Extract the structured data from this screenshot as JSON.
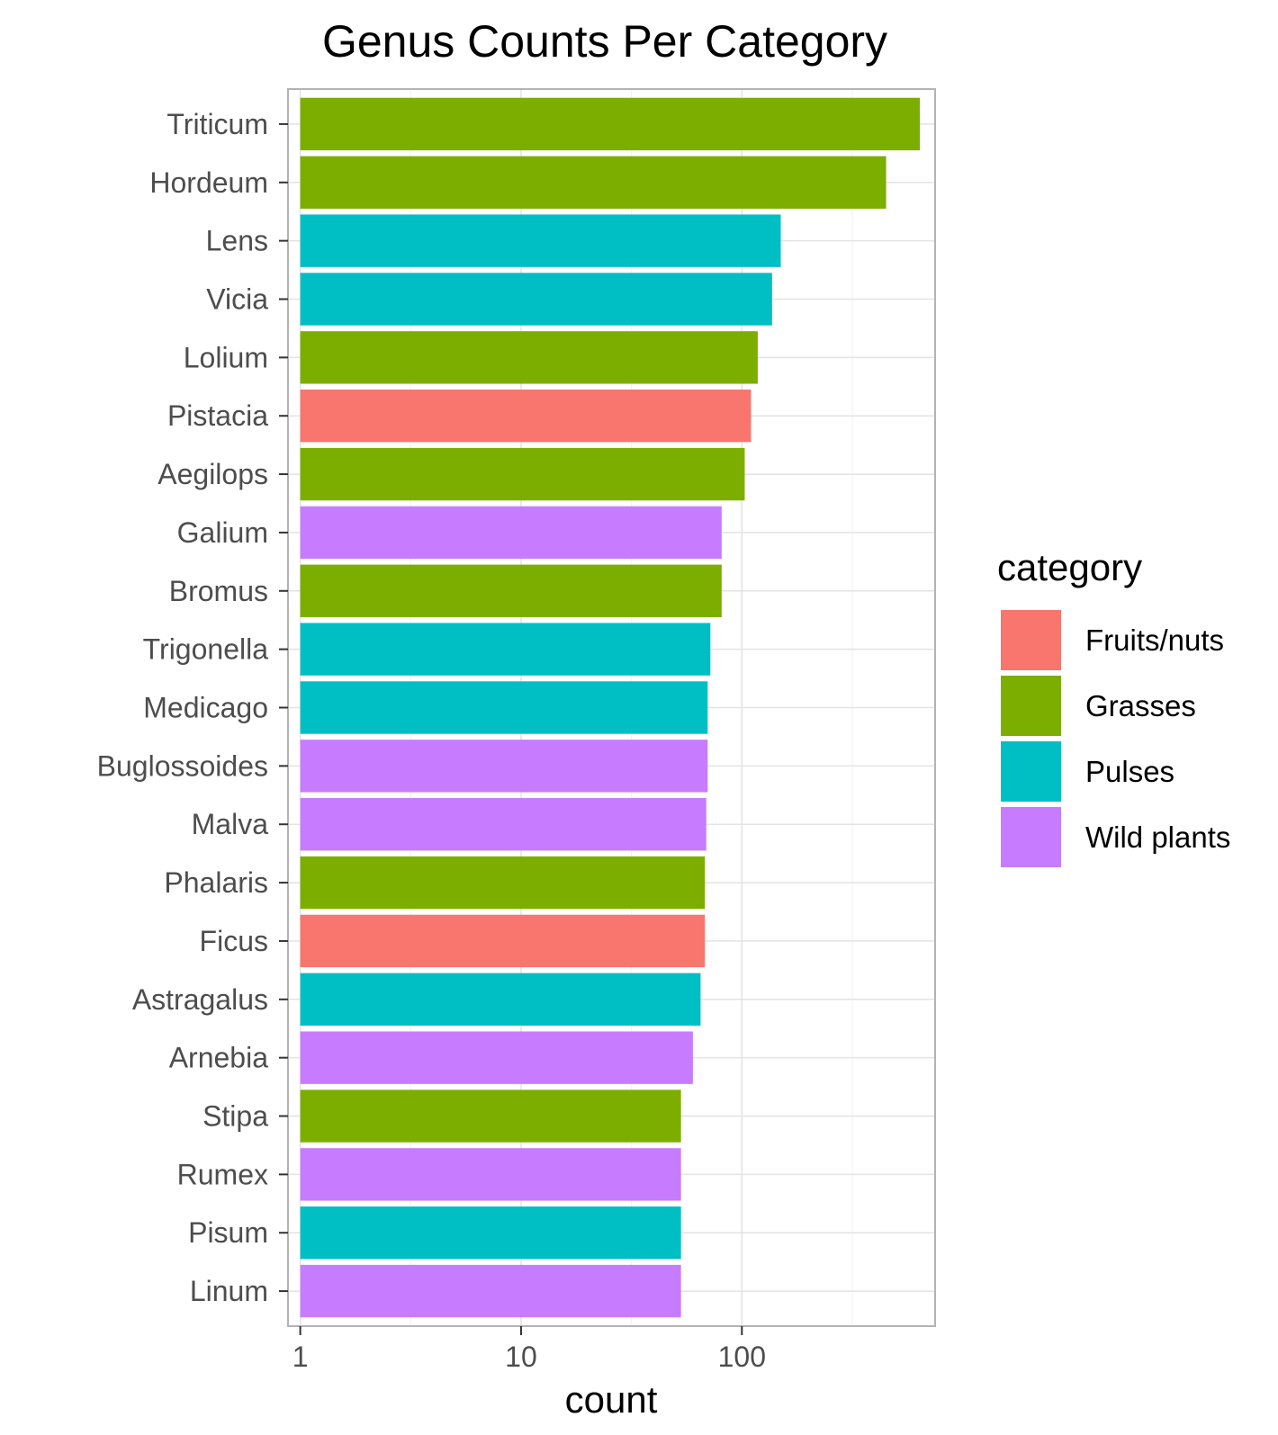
{
  "chart_data": {
    "type": "bar",
    "orientation": "horizontal",
    "title": "Genus Counts Per Category",
    "xlabel": "count",
    "ylabel": "",
    "x_scale": "log10",
    "xlim": [
      0.88,
      750
    ],
    "x_ticks": [
      1,
      10,
      100
    ],
    "x_tick_labels": [
      "1",
      "10",
      "100"
    ],
    "grid": true,
    "legend": {
      "title": "category",
      "position": "right",
      "entries": [
        {
          "label": "Fruits/nuts",
          "color": "#F8766D"
        },
        {
          "label": "Grasses",
          "color": "#7CAE00"
        },
        {
          "label": "Pulses",
          "color": "#00BFC4"
        },
        {
          "label": "Wild plants",
          "color": "#C77CFF"
        }
      ]
    },
    "categories": [
      "Triticum",
      "Hordeum",
      "Lens",
      "Vicia",
      "Lolium",
      "Pistacia",
      "Aegilops",
      "Galium",
      "Bromus",
      "Trigonella",
      "Medicago",
      "Buglossoides",
      "Malva",
      "Phalaris",
      "Ficus",
      "Astragalus",
      "Arnebia",
      "Stipa",
      "Rumex",
      "Pisum",
      "Linum"
    ],
    "values": [
      640,
      450,
      150,
      137,
      118,
      110,
      103,
      81,
      81,
      72,
      70,
      70,
      69,
      68,
      68,
      65,
      60,
      53,
      53,
      53,
      53
    ],
    "bar_categories": [
      "Grasses",
      "Grasses",
      "Pulses",
      "Pulses",
      "Grasses",
      "Fruits/nuts",
      "Grasses",
      "Wild plants",
      "Grasses",
      "Pulses",
      "Pulses",
      "Wild plants",
      "Wild plants",
      "Grasses",
      "Fruits/nuts",
      "Pulses",
      "Wild plants",
      "Grasses",
      "Wild plants",
      "Pulses",
      "Wild plants"
    ]
  }
}
